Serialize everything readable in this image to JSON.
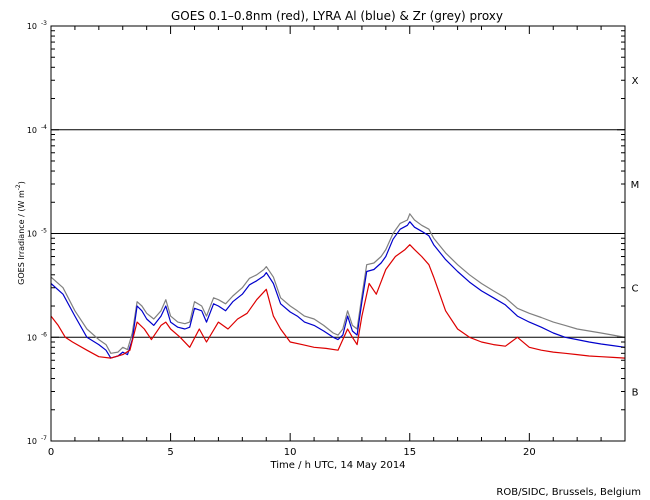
{
  "chart_data": {
    "type": "line",
    "title": "GOES 0.1–0.8nm (red), LYRA Al (blue) & Zr (grey) proxy",
    "xlabel": "Time / h UTC, 14 May 2014",
    "ylabel": "GOES Irradiance / (W m",
    "ylabel_sup": "-2",
    "ylabel_close": ")",
    "xlim": [
      0,
      24
    ],
    "ylim": [
      1e-07,
      0.001
    ],
    "yscale": "log",
    "x_ticks": [
      0,
      5,
      10,
      15,
      20
    ],
    "x_tick_labels": [
      "0",
      "5",
      "10",
      "15",
      "20"
    ],
    "y_ticks": [
      1e-07,
      1e-06,
      1e-05,
      0.0001,
      0.001
    ],
    "y_tick_base": "10",
    "y_tick_exponents": [
      "-7",
      "-6",
      "-5",
      "-4",
      "-3"
    ],
    "flare_class_levels": [
      0.0001,
      1e-05,
      1e-06
    ],
    "flare_classes": [
      {
        "label": "X",
        "value": 0.0003
      },
      {
        "label": "M",
        "value": 3e-05
      },
      {
        "label": "C",
        "value": 3e-06
      },
      {
        "label": "B",
        "value": 3e-07
      }
    ],
    "colors": {
      "red": "#dd0000",
      "blue": "#0000cc",
      "grey": "#808080"
    },
    "series": [
      {
        "color_name": "grey",
        "x": [
          0.0,
          0.5,
          1.0,
          1.5,
          2.0,
          2.3,
          2.5,
          2.8,
          3.0,
          3.2,
          3.4,
          3.6,
          3.8,
          4.0,
          4.3,
          4.6,
          4.8,
          5.0,
          5.3,
          5.6,
          5.8,
          6.0,
          6.3,
          6.5,
          6.8,
          7.0,
          7.3,
          7.6,
          8.0,
          8.3,
          8.6,
          8.9,
          9.0,
          9.3,
          9.6,
          10.0,
          10.3,
          10.6,
          11.0,
          11.4,
          11.8,
          12.0,
          12.2,
          12.4,
          12.6,
          12.8,
          13.0,
          13.2,
          13.5,
          13.8,
          14.0,
          14.3,
          14.6,
          14.9,
          15.0,
          15.2,
          15.5,
          15.8,
          16.0,
          16.5,
          17.0,
          17.5,
          18.0,
          18.5,
          19.0,
          19.5,
          20.0,
          20.5,
          21.0,
          21.5,
          22.0,
          22.5,
          23.0,
          23.5,
          24.0
        ],
        "y": [
          3.8e-06,
          3e-06,
          1.8e-06,
          1.2e-06,
          9.5e-07,
          8.5e-07,
          7e-07,
          7.2e-07,
          8e-07,
          7.6e-07,
          1.1e-06,
          2.2e-06,
          2e-06,
          1.7e-06,
          1.5e-06,
          1.8e-06,
          2.3e-06,
          1.6e-06,
          1.4e-06,
          1.35e-06,
          1.4e-06,
          2.2e-06,
          2e-06,
          1.6e-06,
          2.4e-06,
          2.3e-06,
          2.1e-06,
          2.5e-06,
          3e-06,
          3.7e-06,
          4e-06,
          4.5e-06,
          4.8e-06,
          3.8e-06,
          2.4e-06,
          2e-06,
          1.8e-06,
          1.6e-06,
          1.5e-06,
          1.3e-06,
          1.1e-06,
          1.05e-06,
          1.2e-06,
          1.8e-06,
          1.3e-06,
          1.2e-06,
          2.5e-06,
          5e-06,
          5.2e-06,
          6e-06,
          7e-06,
          1e-05,
          1.25e-05,
          1.35e-05,
          1.55e-05,
          1.35e-05,
          1.2e-05,
          1.1e-05,
          9e-06,
          6.5e-06,
          5e-06,
          4e-06,
          3.3e-06,
          2.8e-06,
          2.4e-06,
          1.9e-06,
          1.7e-06,
          1.55e-06,
          1.4e-06,
          1.3e-06,
          1.2e-06,
          1.15e-06,
          1.1e-06,
          1.05e-06,
          1e-06
        ]
      },
      {
        "color_name": "blue",
        "x": [
          0.0,
          0.5,
          1.0,
          1.5,
          2.0,
          2.3,
          2.5,
          2.8,
          3.0,
          3.2,
          3.4,
          3.6,
          3.8,
          4.0,
          4.3,
          4.6,
          4.8,
          5.0,
          5.3,
          5.6,
          5.8,
          6.0,
          6.3,
          6.5,
          6.8,
          7.0,
          7.3,
          7.6,
          8.0,
          8.3,
          8.6,
          8.9,
          9.0,
          9.3,
          9.6,
          10.0,
          10.3,
          10.6,
          11.0,
          11.4,
          11.8,
          12.0,
          12.2,
          12.4,
          12.6,
          12.8,
          13.0,
          13.2,
          13.5,
          13.8,
          14.0,
          14.3,
          14.6,
          14.9,
          15.0,
          15.2,
          15.5,
          15.8,
          16.0,
          16.5,
          17.0,
          17.5,
          18.0,
          18.5,
          19.0,
          19.5,
          20.0,
          20.5,
          21.0,
          21.5,
          22.0,
          22.5,
          23.0,
          23.5,
          24.0
        ],
        "y": [
          3.3e-06,
          2.6e-06,
          1.6e-06,
          1e-06,
          8.5e-07,
          7.5e-07,
          6.3e-07,
          6.6e-07,
          7.2e-07,
          6.8e-07,
          9.5e-07,
          2e-06,
          1.8e-06,
          1.5e-06,
          1.3e-06,
          1.6e-06,
          2e-06,
          1.4e-06,
          1.25e-06,
          1.2e-06,
          1.25e-06,
          1.9e-06,
          1.8e-06,
          1.4e-06,
          2.1e-06,
          2e-06,
          1.8e-06,
          2.2e-06,
          2.6e-06,
          3.2e-06,
          3.5e-06,
          3.9e-06,
          4.2e-06,
          3.3e-06,
          2.1e-06,
          1.75e-06,
          1.6e-06,
          1.4e-06,
          1.3e-06,
          1.15e-06,
          1e-06,
          9.5e-07,
          1.05e-06,
          1.6e-06,
          1.15e-06,
          1.05e-06,
          2.2e-06,
          4.3e-06,
          4.5e-06,
          5.2e-06,
          6e-06,
          8.8e-06,
          1.1e-05,
          1.2e-05,
          1.3e-05,
          1.15e-05,
          1.05e-05,
          9.5e-06,
          7.8e-06,
          5.6e-06,
          4.3e-06,
          3.4e-06,
          2.8e-06,
          2.4e-06,
          2.05e-06,
          1.6e-06,
          1.4e-06,
          1.25e-06,
          1.1e-06,
          1e-06,
          9.5e-07,
          9e-07,
          8.6e-07,
          8.3e-07,
          8e-07
        ]
      },
      {
        "color_name": "red",
        "x": [
          0.0,
          0.3,
          0.6,
          0.9,
          1.5,
          2.0,
          2.5,
          3.0,
          3.3,
          3.6,
          3.9,
          4.2,
          4.6,
          4.8,
          5.0,
          5.4,
          5.8,
          6.2,
          6.5,
          7.0,
          7.4,
          7.8,
          8.2,
          8.6,
          9.0,
          9.3,
          9.6,
          10.0,
          10.5,
          11.0,
          11.5,
          12.0,
          12.4,
          12.6,
          12.8,
          13.0,
          13.3,
          13.6,
          14.0,
          14.4,
          14.8,
          15.0,
          15.2,
          15.5,
          15.8,
          16.0,
          16.5,
          17.0,
          17.5,
          18.0,
          18.5,
          19.0,
          19.5,
          20.0,
          20.5,
          21.0,
          21.5,
          22.0,
          22.5,
          23.0,
          23.5,
          24.0
        ],
        "y": [
          1.6e-06,
          1.3e-06,
          1e-06,
          9e-07,
          7.5e-07,
          6.5e-07,
          6.3e-07,
          6.8e-07,
          7.5e-07,
          1.4e-06,
          1.2e-06,
          9.5e-07,
          1.3e-06,
          1.4e-06,
          1.2e-06,
          1e-06,
          8e-07,
          1.2e-06,
          9e-07,
          1.4e-06,
          1.2e-06,
          1.5e-06,
          1.7e-06,
          2.3e-06,
          2.9e-06,
          1.6e-06,
          1.2e-06,
          9e-07,
          8.5e-07,
          8e-07,
          7.8e-07,
          7.5e-07,
          1.2e-06,
          1e-06,
          8.5e-07,
          1.6e-06,
          3.3e-06,
          2.6e-06,
          4.5e-06,
          6e-06,
          7e-06,
          7.8e-06,
          7e-06,
          6e-06,
          5e-06,
          3.8e-06,
          1.8e-06,
          1.2e-06,
          1e-06,
          9e-07,
          8.5e-07,
          8.2e-07,
          1e-06,
          8e-07,
          7.5e-07,
          7.2e-07,
          7e-07,
          6.8e-07,
          6.6e-07,
          6.5e-07,
          6.4e-07,
          6.3e-07
        ]
      }
    ],
    "footer": "ROB/SIDC, Brussels, Belgium"
  }
}
